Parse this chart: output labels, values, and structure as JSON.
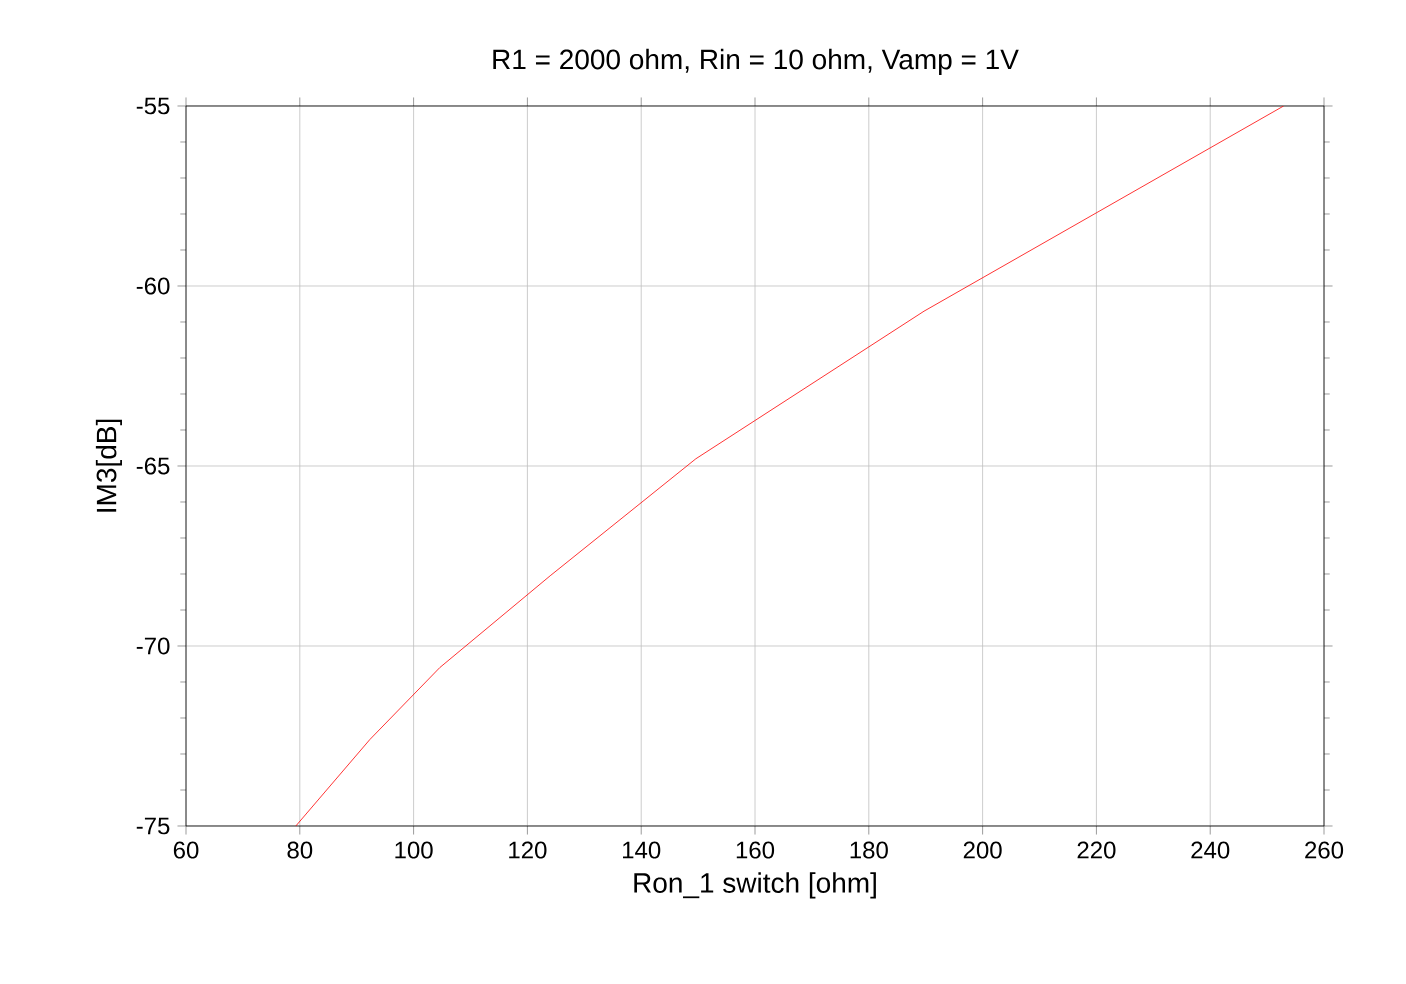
{
  "chart_data": {
    "type": "line",
    "title": "R1 = 2000 ohm, Rin = 10 ohm, Vamp = 1V",
    "xlabel": "Ron_1 switch [ohm]",
    "ylabel": "IM3[dB]",
    "series": [
      {
        "color": "#ff0000",
        "x": [
          79.3,
          92.3,
          104.6,
          124,
          149.6,
          189.7,
          252.9
        ],
        "values": [
          -75,
          -72.6,
          -70.6,
          -68.05,
          -64.8,
          -60.7,
          -55
        ]
      }
    ],
    "xlim": [
      60,
      260
    ],
    "ylim": [
      -75,
      -55
    ],
    "xticks": [
      60,
      80,
      100,
      120,
      140,
      160,
      180,
      200,
      220,
      240,
      260
    ],
    "yticks": [
      -75,
      -70,
      -65,
      -60,
      -55
    ],
    "grid": true
  }
}
